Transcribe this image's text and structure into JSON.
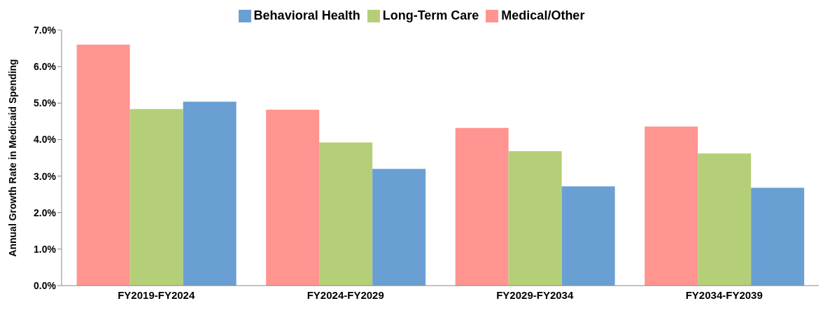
{
  "chart_data": {
    "type": "bar",
    "ylabel": "Annual Growth Rate in Medicaid Spending",
    "categories": [
      "FY2019-FY2024",
      "FY2024-FY2029",
      "FY2029-FY2034",
      "FY2034-FY2039"
    ],
    "series": [
      {
        "name": "Medical/Other",
        "color": "#ff9490",
        "values": [
          6.6,
          4.82,
          4.32,
          4.36
        ]
      },
      {
        "name": "Long-Term Care",
        "color": "#b5cf78",
        "values": [
          4.84,
          3.92,
          3.68,
          3.62
        ]
      },
      {
        "name": "Behavioral Health",
        "color": "#6a9fd4",
        "values": [
          5.04,
          3.2,
          2.72,
          2.68
        ]
      }
    ],
    "ylim": [
      0,
      7
    ],
    "yticks": [
      {
        "value": 0,
        "label": "0.0%"
      },
      {
        "value": 1,
        "label": "1.0%"
      },
      {
        "value": 2,
        "label": "2.0%"
      },
      {
        "value": 3,
        "label": "3.0%"
      },
      {
        "value": 4,
        "label": "4.0%"
      },
      {
        "value": 5,
        "label": "5.0%"
      },
      {
        "value": 6,
        "label": "6.0%"
      },
      {
        "value": 7,
        "label": "7.0%"
      }
    ],
    "grid": false,
    "legend": "top"
  }
}
